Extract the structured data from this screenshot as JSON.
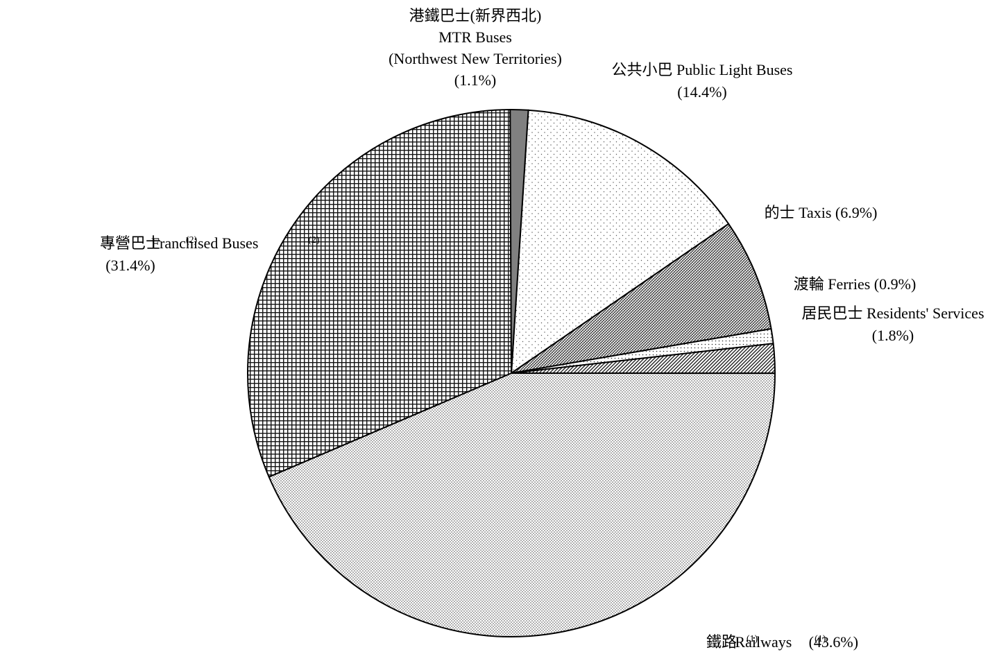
{
  "chart_data": {
    "type": "pie",
    "title": "",
    "slices": [
      {
        "key": "public-light-buses",
        "value": 14.4,
        "pattern": "sparse-dots",
        "label_lines": [
          [
            {
              "text": "公共小巴 Public Light Buses"
            }
          ],
          [
            {
              "text": "(14.4%)"
            }
          ]
        ]
      },
      {
        "key": "taxis",
        "value": 6.9,
        "pattern": "dense-diagonal",
        "label_lines": [
          [
            {
              "text": "的士 Taxis (6.9%)"
            }
          ]
        ]
      },
      {
        "key": "ferries",
        "value": 0.9,
        "pattern": "medium-dots",
        "label_lines": [
          [
            {
              "text": "渡輪 Ferries (0.9%)"
            }
          ]
        ]
      },
      {
        "key": "residents-services",
        "value": 1.8,
        "pattern": "diagonal-stripes",
        "label_lines": [
          [
            {
              "text": "居民巴士 Residents' Services"
            }
          ],
          [
            {
              "text": "(1.8%)"
            }
          ]
        ]
      },
      {
        "key": "railways",
        "value": 43.6,
        "pattern": "fine-dots",
        "label_lines": [
          [
            {
              "text": "鐵路"
            },
            {
              "text": "(1)",
              "sup": true
            },
            {
              "text": "Railways"
            },
            {
              "text": "(1)",
              "sup": true
            },
            {
              "text": " (43.6%)"
            }
          ]
        ]
      },
      {
        "key": "franchised-buses",
        "value": 31.4,
        "pattern": "grid",
        "label_lines": [
          [
            {
              "text": "專營巴士"
            },
            {
              "text": "(2)",
              "sup": true
            },
            {
              "text": " Franchised Buses"
            },
            {
              "text": "(2)",
              "sup": true
            }
          ],
          [
            {
              "text": "(31.4%)"
            }
          ]
        ]
      },
      {
        "key": "mtr-buses-nwnt",
        "value": 1.1,
        "pattern": "solid-gray",
        "color": "#808080",
        "label_lines": [
          [
            {
              "text": "港鐵巴士(新界西北)"
            }
          ],
          [
            {
              "text": "MTR Buses"
            }
          ],
          [
            {
              "text": "(Northwest New Territories)"
            }
          ],
          [
            {
              "text": "(1.1%)"
            }
          ]
        ]
      }
    ]
  }
}
